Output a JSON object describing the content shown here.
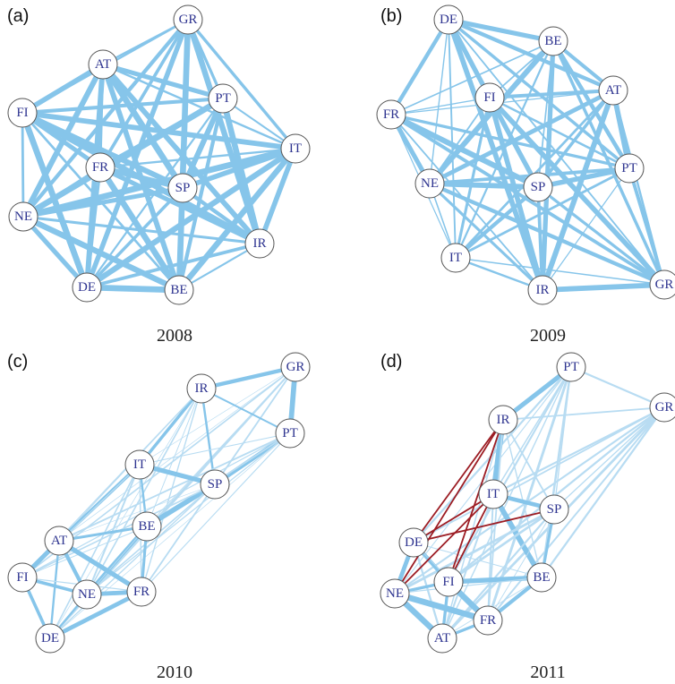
{
  "colors": {
    "edge": "#86c5ea",
    "edge_light": "#b8dcf2",
    "edge_dark": "#9c1c23",
    "node_text": "#2f3590"
  },
  "panels": [
    {
      "label": "(a)",
      "year": "2008",
      "nodes": [
        {
          "id": "GR"
        },
        {
          "id": "AT"
        },
        {
          "id": "PT"
        },
        {
          "id": "FI"
        },
        {
          "id": "IT"
        },
        {
          "id": "FR"
        },
        {
          "id": "SP"
        },
        {
          "id": "NE"
        },
        {
          "id": "IR"
        },
        {
          "id": "DE"
        },
        {
          "id": "BE"
        }
      ]
    },
    {
      "label": "(b)",
      "year": "2009",
      "nodes": [
        {
          "id": "DE"
        },
        {
          "id": "BE"
        },
        {
          "id": "AT"
        },
        {
          "id": "FI"
        },
        {
          "id": "FR"
        },
        {
          "id": "PT"
        },
        {
          "id": "NE"
        },
        {
          "id": "SP"
        },
        {
          "id": "IT"
        },
        {
          "id": "IR"
        },
        {
          "id": "GR"
        }
      ]
    },
    {
      "label": "(c)",
      "year": "2010",
      "nodes": [
        {
          "id": "GR"
        },
        {
          "id": "IR"
        },
        {
          "id": "PT"
        },
        {
          "id": "IT"
        },
        {
          "id": "SP"
        },
        {
          "id": "BE"
        },
        {
          "id": "AT"
        },
        {
          "id": "FI"
        },
        {
          "id": "NE"
        },
        {
          "id": "FR"
        },
        {
          "id": "DE"
        }
      ]
    },
    {
      "label": "(d)",
      "year": "2011",
      "nodes": [
        {
          "id": "PT"
        },
        {
          "id": "GR"
        },
        {
          "id": "IR"
        },
        {
          "id": "IT"
        },
        {
          "id": "SP"
        },
        {
          "id": "DE"
        },
        {
          "id": "FI"
        },
        {
          "id": "BE"
        },
        {
          "id": "NE"
        },
        {
          "id": "FR"
        },
        {
          "id": "AT"
        }
      ]
    }
  ]
}
